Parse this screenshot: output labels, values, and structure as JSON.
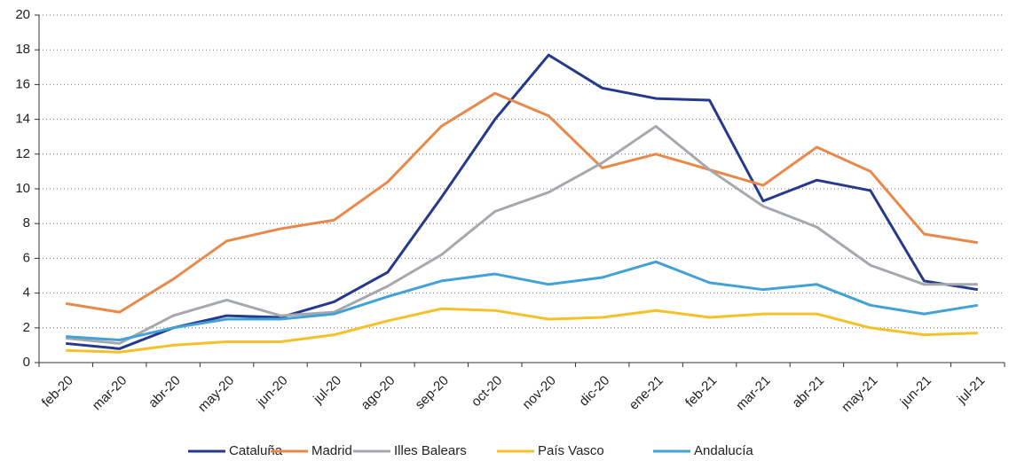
{
  "chart_data": {
    "type": "line",
    "categories": [
      "feb-20",
      "mar-20",
      "abr-20",
      "may-20",
      "jun-20",
      "jul-20",
      "ago-20",
      "sep-20",
      "oct-20",
      "nov-20",
      "dic-20",
      "ene-21",
      "feb-21",
      "mar-21",
      "abr-21",
      "may-21",
      "jun-21",
      "jul-21"
    ],
    "series": [
      {
        "name": "Cataluña",
        "color": "#253a8c",
        "values": [
          1.1,
          0.8,
          2.0,
          2.7,
          2.6,
          3.5,
          5.2,
          9.5,
          14.0,
          17.7,
          15.8,
          15.2,
          15.1,
          9.3,
          10.5,
          9.9,
          4.7,
          4.2
        ]
      },
      {
        "name": "Madrid",
        "color": "#e8894a",
        "values": [
          3.4,
          2.9,
          4.8,
          7.0,
          7.7,
          8.2,
          10.4,
          13.6,
          15.5,
          14.2,
          11.2,
          12.0,
          11.1,
          10.2,
          12.4,
          11.0,
          7.4,
          6.9
        ]
      },
      {
        "name": "Illes Balears",
        "color": "#a5a9ae",
        "values": [
          1.4,
          1.1,
          2.7,
          3.6,
          2.7,
          2.9,
          4.4,
          6.2,
          8.7,
          9.8,
          11.5,
          13.6,
          11.1,
          9.0,
          7.8,
          5.6,
          4.5,
          4.5
        ]
      },
      {
        "name": "País Vasco",
        "color": "#f5c12a",
        "values": [
          0.7,
          0.6,
          1.0,
          1.2,
          1.2,
          1.6,
          2.4,
          3.1,
          3.0,
          2.5,
          2.6,
          3.0,
          2.6,
          2.8,
          2.8,
          2.0,
          1.6,
          1.7
        ]
      },
      {
        "name": "Andalucía",
        "color": "#42a2d8",
        "values": [
          1.5,
          1.3,
          2.0,
          2.5,
          2.5,
          2.8,
          3.8,
          4.7,
          5.1,
          4.5,
          4.9,
          5.8,
          4.6,
          4.2,
          4.5,
          3.3,
          2.8,
          3.3
        ]
      }
    ],
    "ylim": [
      0,
      20
    ],
    "yticks": [
      0,
      2,
      4,
      6,
      8,
      10,
      12,
      14,
      16,
      18,
      20
    ],
    "grid": true,
    "legend": "bottom"
  }
}
